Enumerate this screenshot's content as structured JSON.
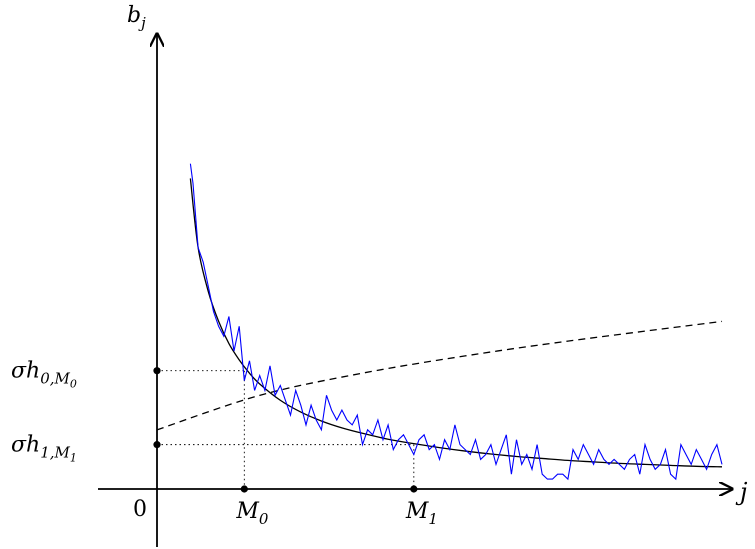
{
  "chart_data": {
    "type": "line",
    "title": "",
    "axes": {
      "y_label": {
        "base": "b",
        "sub": "j"
      },
      "x_label": "j",
      "origin_label": "0"
    },
    "xlim": [
      0,
      110
    ],
    "ylim": [
      0,
      8.5
    ],
    "x_marks": [
      {
        "x": 17,
        "label": {
          "base": "M",
          "sub": "0"
        }
      },
      {
        "x": 50,
        "label": {
          "base": "M",
          "sub": "1"
        }
      }
    ],
    "y_marks": [
      {
        "y": 2.4,
        "label": {
          "base": "σh",
          "sub": "0,",
          "subsub": "M",
          "subsubsub": "0"
        }
      },
      {
        "y": 0.9,
        "label": {
          "base": "σh",
          "sub": "1,",
          "subsub": "M",
          "subsubsub": "1"
        }
      }
    ],
    "series": [
      {
        "style": "solid",
        "color": "#000000",
        "x_range": [
          6.5,
          110
        ],
        "values": [
          [
            6.5,
            6.3
          ],
          [
            8,
            4.9
          ],
          [
            10,
            4.0
          ],
          [
            12,
            3.4
          ],
          [
            14,
            2.95
          ],
          [
            16,
            2.62
          ],
          [
            18,
            2.35
          ],
          [
            20,
            2.13
          ],
          [
            24,
            1.8
          ],
          [
            28,
            1.56
          ],
          [
            32,
            1.38
          ],
          [
            36,
            1.24
          ],
          [
            40,
            1.13
          ],
          [
            45,
            1.01
          ],
          [
            50,
            0.92
          ],
          [
            55,
            0.84
          ],
          [
            60,
            0.77
          ],
          [
            65,
            0.71
          ],
          [
            70,
            0.66
          ],
          [
            75,
            0.62
          ],
          [
            80,
            0.58
          ],
          [
            85,
            0.55
          ],
          [
            90,
            0.52
          ],
          [
            95,
            0.5
          ],
          [
            100,
            0.48
          ],
          [
            105,
            0.46
          ],
          [
            110,
            0.45
          ]
        ]
      },
      {
        "style": "dashed",
        "color": "#000000",
        "values": [
          [
            0,
            1.2
          ],
          [
            20,
            1.9
          ],
          [
            40,
            2.35
          ],
          [
            60,
            2.7
          ],
          [
            80,
            3.0
          ],
          [
            110,
            3.4
          ]
        ]
      },
      {
        "style": "solid",
        "color": "#0000ff",
        "values": [
          [
            6.5,
            6.6
          ],
          [
            7,
            6.2
          ],
          [
            8,
            4.9
          ],
          [
            9,
            4.6
          ],
          [
            10,
            4.1
          ],
          [
            11,
            3.6
          ],
          [
            12,
            3.3
          ],
          [
            13,
            3.1
          ],
          [
            14,
            3.5
          ],
          [
            15,
            2.8
          ],
          [
            16,
            3.3
          ],
          [
            17,
            2.2
          ],
          [
            18,
            2.6
          ],
          [
            19,
            2.0
          ],
          [
            20,
            2.3
          ],
          [
            21,
            2.0
          ],
          [
            22,
            2.5
          ],
          [
            23,
            1.9
          ],
          [
            24,
            2.1
          ],
          [
            25,
            1.8
          ],
          [
            26,
            1.5
          ],
          [
            27,
            2.0
          ],
          [
            28,
            1.7
          ],
          [
            29,
            1.3
          ],
          [
            30,
            1.7
          ],
          [
            31,
            1.4
          ],
          [
            32,
            1.2
          ],
          [
            33,
            1.9
          ],
          [
            34,
            1.6
          ],
          [
            35,
            1.4
          ],
          [
            36,
            1.6
          ],
          [
            37,
            1.4
          ],
          [
            38,
            1.3
          ],
          [
            39,
            1.5
          ],
          [
            40,
            0.9
          ],
          [
            41,
            1.2
          ],
          [
            42,
            1.1
          ],
          [
            43,
            1.4
          ],
          [
            44,
            1.0
          ],
          [
            45,
            1.3
          ],
          [
            46,
            0.8
          ],
          [
            47,
            1.0
          ],
          [
            48,
            1.1
          ],
          [
            49,
            0.9
          ],
          [
            50,
            0.7
          ],
          [
            51,
            1.0
          ],
          [
            52,
            1.1
          ],
          [
            53,
            0.8
          ],
          [
            54,
            0.9
          ],
          [
            55,
            0.6
          ],
          [
            56,
            1.0
          ],
          [
            57,
            0.8
          ],
          [
            58,
            1.3
          ],
          [
            59,
            0.9
          ],
          [
            60,
            0.8
          ],
          [
            61,
            0.7
          ],
          [
            62,
            1.0
          ],
          [
            63,
            0.6
          ],
          [
            64,
            0.7
          ],
          [
            65,
            0.9
          ],
          [
            66,
            0.5
          ],
          [
            67,
            0.8
          ],
          [
            68,
            1.1
          ],
          [
            69,
            0.3
          ],
          [
            70,
            1.0
          ],
          [
            71,
            0.5
          ],
          [
            72,
            0.7
          ],
          [
            73,
            0.4
          ],
          [
            74,
            0.9
          ],
          [
            75,
            0.3
          ],
          [
            76,
            0.2
          ],
          [
            77,
            0.2
          ],
          [
            78,
            0.3
          ],
          [
            79,
            0.3
          ],
          [
            80,
            0.2
          ],
          [
            81,
            0.8
          ],
          [
            82,
            0.6
          ],
          [
            83,
            0.9
          ],
          [
            84,
            0.7
          ],
          [
            85,
            0.5
          ],
          [
            86,
            0.8
          ],
          [
            87,
            0.6
          ],
          [
            88,
            0.5
          ],
          [
            89,
            0.6
          ],
          [
            90,
            0.5
          ],
          [
            91,
            0.4
          ],
          [
            92,
            0.6
          ],
          [
            93,
            0.7
          ],
          [
            94,
            0.3
          ],
          [
            95,
            0.9
          ],
          [
            96,
            0.6
          ],
          [
            97,
            0.4
          ],
          [
            98,
            0.5
          ],
          [
            99,
            0.8
          ],
          [
            100,
            0.3
          ],
          [
            101,
            0.2
          ],
          [
            102,
            0.9
          ],
          [
            103,
            0.7
          ],
          [
            104,
            0.5
          ],
          [
            105,
            0.8
          ],
          [
            106,
            0.6
          ],
          [
            107,
            0.4
          ],
          [
            108,
            0.7
          ],
          [
            109,
            0.9
          ],
          [
            110,
            0.5
          ]
        ]
      }
    ],
    "grid": false,
    "legend": "none"
  }
}
